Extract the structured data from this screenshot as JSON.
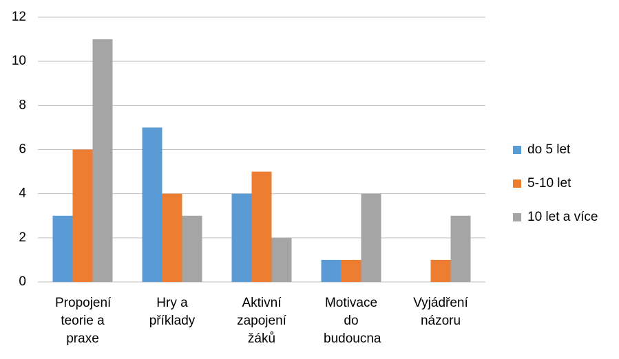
{
  "chart_data": {
    "type": "bar",
    "categories": [
      "Propojení teorie a praxe",
      "Hry a příklady",
      "Aktivní zapojení žáků",
      "Motivace do budoucna",
      "Vyjádření názoru"
    ],
    "series": [
      {
        "name": "do 5 let",
        "color": "#5b9bd5",
        "values": [
          3,
          7,
          4,
          1,
          0
        ]
      },
      {
        "name": "5-10 let",
        "color": "#ed7d31",
        "values": [
          6,
          4,
          5,
          1,
          1
        ]
      },
      {
        "name": "10 let a více",
        "color": "#a5a5a5",
        "values": [
          11,
          3,
          2,
          4,
          3
        ]
      }
    ],
    "ylim": [
      0,
      12
    ],
    "yticks": [
      0,
      2,
      4,
      6,
      8,
      10,
      12
    ],
    "grid": true,
    "legend": "right"
  }
}
